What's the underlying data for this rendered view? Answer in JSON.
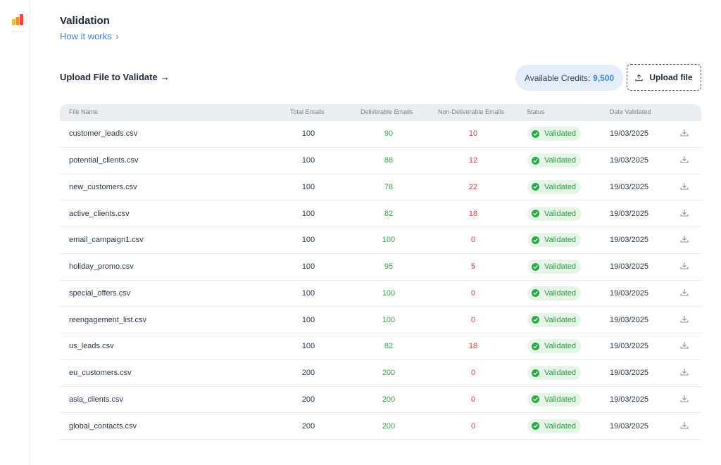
{
  "page": {
    "title": "Validation",
    "how_it_works": "How it works",
    "how_chevron": "›"
  },
  "upload": {
    "heading": "Upload File to Validate",
    "heading_arrow": "→",
    "credits_label": "Available Credits:",
    "credits_value": "9,500",
    "button_label": "Upload file"
  },
  "table": {
    "columns": [
      "File Name",
      "Total Emails",
      "Deliverable Emails",
      "Non-Deliverable Emails",
      "Status",
      "Date Validated"
    ],
    "rows": [
      {
        "file": "customer_leads.csv",
        "total": "100",
        "deliverable": "90",
        "non_deliverable": "10",
        "status": "Validated",
        "date": "19/03/2025"
      },
      {
        "file": "potential_clients.csv",
        "total": "100",
        "deliverable": "88",
        "non_deliverable": "12",
        "status": "Validated",
        "date": "19/03/2025"
      },
      {
        "file": "new_customers.csv",
        "total": "100",
        "deliverable": "78",
        "non_deliverable": "22",
        "status": "Validated",
        "date": "19/03/2025"
      },
      {
        "file": "active_clients.csv",
        "total": "100",
        "deliverable": "82",
        "non_deliverable": "18",
        "status": "Validated",
        "date": "19/03/2025"
      },
      {
        "file": "email_campaign1.csv",
        "total": "100",
        "deliverable": "100",
        "non_deliverable": "0",
        "status": "Validated",
        "date": "19/03/2025"
      },
      {
        "file": "holiday_promo.csv",
        "total": "100",
        "deliverable": "95",
        "non_deliverable": "5",
        "status": "Validated",
        "date": "19/03/2025"
      },
      {
        "file": "special_offers.csv",
        "total": "100",
        "deliverable": "100",
        "non_deliverable": "0",
        "status": "Validated",
        "date": "19/03/2025"
      },
      {
        "file": "reengagement_list.csv",
        "total": "100",
        "deliverable": "100",
        "non_deliverable": "0",
        "status": "Validated",
        "date": "19/03/2025"
      },
      {
        "file": "us_leads.csv",
        "total": "100",
        "deliverable": "82",
        "non_deliverable": "18",
        "status": "Validated",
        "date": "19/03/2025"
      },
      {
        "file": "eu_customers.csv",
        "total": "200",
        "deliverable": "200",
        "non_deliverable": "0",
        "status": "Validated",
        "date": "19/03/2025"
      },
      {
        "file": "asia_clients.csv",
        "total": "200",
        "deliverable": "200",
        "non_deliverable": "0",
        "status": "Validated",
        "date": "19/03/2025"
      },
      {
        "file": "global_contacts.csv",
        "total": "200",
        "deliverable": "200",
        "non_deliverable": "0",
        "status": "Validated",
        "date": "19/03/2025"
      }
    ]
  },
  "icons": {
    "logo": "brand-logo-icon",
    "upload": "upload-icon",
    "status": "check-circle-icon",
    "download": "download-icon"
  },
  "colors": {
    "accent": "#3d86d8",
    "deliverable": "#3aa54a",
    "non_deliverable": "#e0403b",
    "status_badge_bg": "#e5f5e7",
    "credits_bg": "#e6edfa"
  }
}
